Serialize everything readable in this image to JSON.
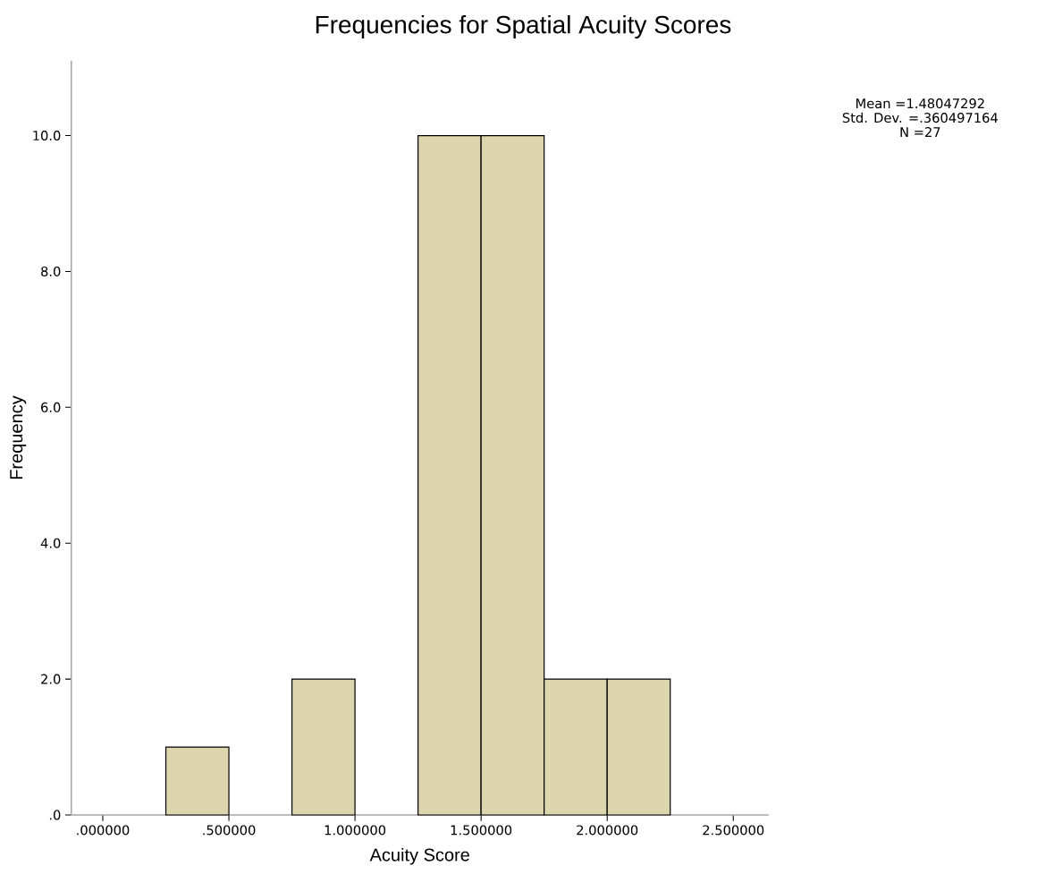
{
  "chart_data": {
    "type": "histogram",
    "title": "Frequencies for Spatial Acuity Scores",
    "xlabel": "Acuity Score",
    "ylabel": "Frequency",
    "bins": [
      0.25,
      0.5,
      0.75,
      1.0,
      1.25,
      1.5,
      1.75,
      2.0,
      2.25
    ],
    "values": [
      1,
      0,
      2,
      0,
      10,
      10,
      2,
      2
    ],
    "color": "#dcd5ae",
    "xlim": [
      -0.125,
      2.64
    ],
    "ylim": [
      0,
      11.1
    ],
    "xticks": [
      {
        "value": 0,
        "label": ".000000"
      },
      {
        "value": 0.5,
        "label": ".500000"
      },
      {
        "value": 1.0,
        "label": "1.000000"
      },
      {
        "value": 1.5,
        "label": "1.500000"
      },
      {
        "value": 2.0,
        "label": "2.000000"
      },
      {
        "value": 2.5,
        "label": "2.500000"
      }
    ],
    "yticks": [
      {
        "value": 0,
        "label": ".0"
      },
      {
        "value": 2,
        "label": "2.0"
      },
      {
        "value": 4,
        "label": "4.0"
      },
      {
        "value": 6,
        "label": "6.0"
      },
      {
        "value": 8,
        "label": "8.0"
      },
      {
        "value": 10,
        "label": "10.0"
      }
    ],
    "annotations": [
      "Mean =1.48047292",
      "Std. Dev. =.360497164",
      "N =27"
    ]
  }
}
